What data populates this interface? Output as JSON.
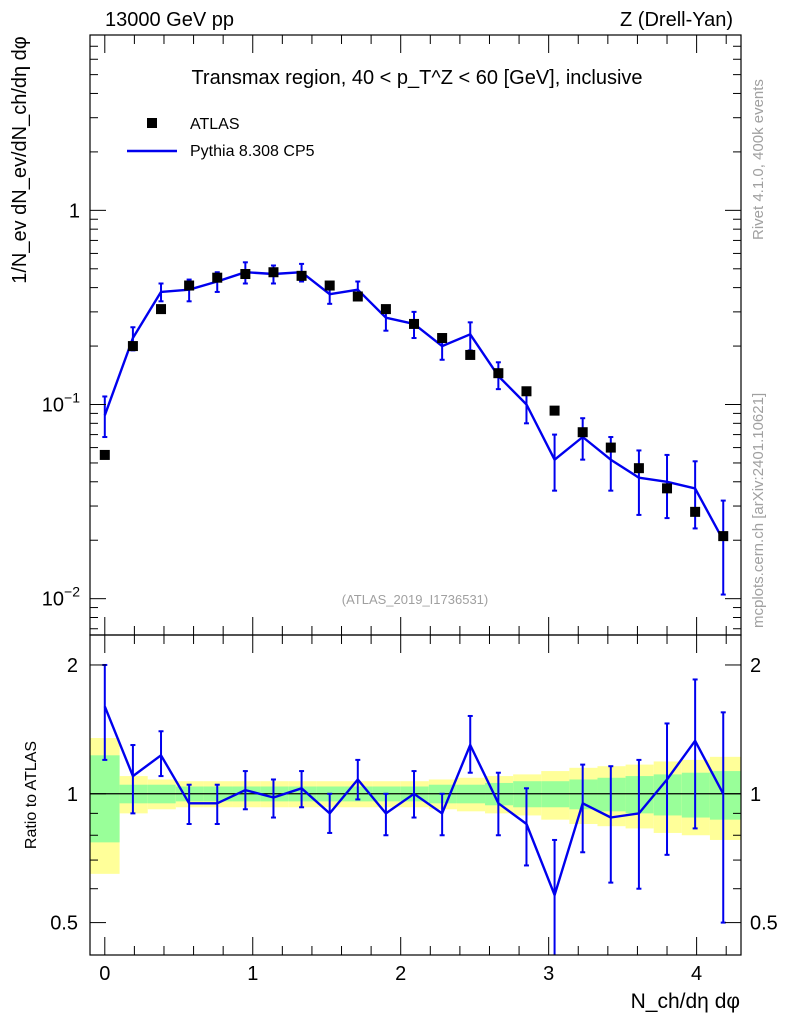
{
  "header": {
    "left": "13000 GeV pp",
    "right": "Z (Drell-Yan)"
  },
  "side": {
    "rivet": "Rivet 4.1.0,  400k events",
    "mcplots": "mcplots.cern.ch [arXiv:2401.10621]"
  },
  "colors": {
    "mc": "#0000ee",
    "data": "#000000",
    "band_inner": "#99ff99",
    "band_outer": "#ffff99"
  },
  "chart_data": [
    {
      "type": "line",
      "panel": "main",
      "title": "Transmax region, 40 < p_T^Z < 60 [GeV], inclusive",
      "watermark": "(ATLAS_2019_I1736531)",
      "xlabel": "N_ch/dη dφ",
      "ylabel": "1/N_ev dN_ev/dN_ch/dη dφ",
      "yscale": "log",
      "xlim": [
        -0.1,
        4.3
      ],
      "ylim": [
        0.0065,
        8
      ],
      "x_ticks": [
        "0",
        "1",
        "2",
        "3",
        "4"
      ],
      "y_ticks": [
        {
          "value": 0.01,
          "base": "10",
          "exp": "−2"
        },
        {
          "value": 0.1,
          "base": "10",
          "exp": "−1"
        },
        {
          "value": 1,
          "base": "1",
          "exp": ""
        }
      ],
      "legend": {
        "position": "top-left",
        "entries": [
          "ATLAS",
          "Pythia 8.308 CP5"
        ]
      },
      "x": [
        0.0,
        0.19,
        0.38,
        0.57,
        0.76,
        0.95,
        1.14,
        1.33,
        1.52,
        1.71,
        1.9,
        2.09,
        2.28,
        2.47,
        2.66,
        2.85,
        3.04,
        3.23,
        3.42,
        3.61,
        3.8,
        3.99,
        4.18
      ],
      "series": [
        {
          "name": "ATLAS",
          "style": "markers",
          "values": [
            0.055,
            0.2,
            0.31,
            0.41,
            0.45,
            0.47,
            0.48,
            0.46,
            0.41,
            0.36,
            0.31,
            0.26,
            0.22,
            0.18,
            0.145,
            0.117,
            0.093,
            0.072,
            0.06,
            0.047,
            0.037,
            0.028,
            0.021
          ]
        },
        {
          "name": "Pythia 8.308 CP5",
          "style": "line",
          "values": [
            0.088,
            0.22,
            0.38,
            0.39,
            0.43,
            0.48,
            0.47,
            0.48,
            0.37,
            0.39,
            0.28,
            0.26,
            0.2,
            0.23,
            0.14,
            0.1,
            0.052,
            0.068,
            0.052,
            0.042,
            0.04,
            0.037,
            0.02
          ],
          "err_lo": [
            0.068,
            0.19,
            0.34,
            0.34,
            0.38,
            0.42,
            0.42,
            0.43,
            0.33,
            0.35,
            0.24,
            0.22,
            0.17,
            0.19,
            0.12,
            0.08,
            0.036,
            0.052,
            0.036,
            0.027,
            0.026,
            0.023,
            0.0105
          ],
          "err_hi": [
            0.11,
            0.25,
            0.42,
            0.44,
            0.48,
            0.54,
            0.52,
            0.53,
            0.41,
            0.43,
            0.32,
            0.3,
            0.23,
            0.265,
            0.165,
            0.12,
            0.07,
            0.085,
            0.068,
            0.058,
            0.055,
            0.051,
            0.032
          ]
        }
      ]
    },
    {
      "type": "line",
      "panel": "ratio",
      "xlabel": "N_ch/dη dφ",
      "ylabel": "Ratio to ATLAS",
      "yscale": "log",
      "xlim": [
        -0.1,
        4.3
      ],
      "ylim": [
        0.42,
        2.35
      ],
      "x_ticks": [
        "0",
        "1",
        "2",
        "3",
        "4"
      ],
      "y_ticks": [
        {
          "value": 0.5,
          "label": "0.5"
        },
        {
          "value": 1,
          "label": "1"
        },
        {
          "value": 2,
          "label": "2"
        }
      ],
      "x": [
        0.0,
        0.19,
        0.38,
        0.57,
        0.76,
        0.95,
        1.14,
        1.33,
        1.52,
        1.71,
        1.9,
        2.09,
        2.28,
        2.47,
        2.66,
        2.85,
        3.04,
        3.23,
        3.42,
        3.61,
        3.8,
        3.99,
        4.18
      ],
      "band_edges": [
        -0.1,
        0.1,
        0.29,
        0.48,
        0.67,
        0.86,
        1.05,
        1.24,
        1.43,
        1.62,
        1.81,
        2.0,
        2.19,
        2.38,
        2.57,
        2.76,
        2.95,
        3.14,
        3.33,
        3.52,
        3.71,
        3.9,
        4.09,
        4.3
      ],
      "band_inner": [
        0.23,
        0.05,
        0.05,
        0.04,
        0.04,
        0.04,
        0.04,
        0.04,
        0.04,
        0.04,
        0.04,
        0.04,
        0.05,
        0.05,
        0.06,
        0.07,
        0.07,
        0.08,
        0.09,
        0.1,
        0.11,
        0.12,
        0.13
      ],
      "band_outer": [
        0.35,
        0.1,
        0.08,
        0.07,
        0.07,
        0.07,
        0.07,
        0.07,
        0.07,
        0.07,
        0.07,
        0.07,
        0.08,
        0.09,
        0.1,
        0.11,
        0.13,
        0.15,
        0.16,
        0.17,
        0.19,
        0.2,
        0.22
      ],
      "series": [
        {
          "name": "Pythia 8.308 CP5 / ATLAS",
          "values": [
            1.6,
            1.1,
            1.23,
            0.95,
            0.95,
            1.02,
            0.98,
            1.03,
            0.9,
            1.08,
            0.9,
            1.0,
            0.9,
            1.3,
            0.95,
            0.85,
            0.58,
            0.95,
            0.88,
            0.9,
            1.08,
            1.33,
            1.0
          ],
          "err_lo": [
            1.2,
            0.9,
            1.1,
            0.85,
            0.85,
            0.92,
            0.88,
            0.93,
            0.81,
            0.97,
            0.8,
            0.88,
            0.8,
            1.12,
            0.8,
            0.68,
            0.4,
            0.73,
            0.62,
            0.6,
            0.72,
            0.83,
            0.5
          ],
          "err_hi": [
            2.0,
            1.3,
            1.4,
            1.05,
            1.05,
            1.13,
            1.08,
            1.13,
            1.0,
            1.2,
            1.0,
            1.13,
            1.0,
            1.52,
            1.12,
            1.03,
            0.78,
            1.17,
            1.16,
            1.2,
            1.46,
            1.85,
            1.55
          ]
        }
      ]
    }
  ]
}
